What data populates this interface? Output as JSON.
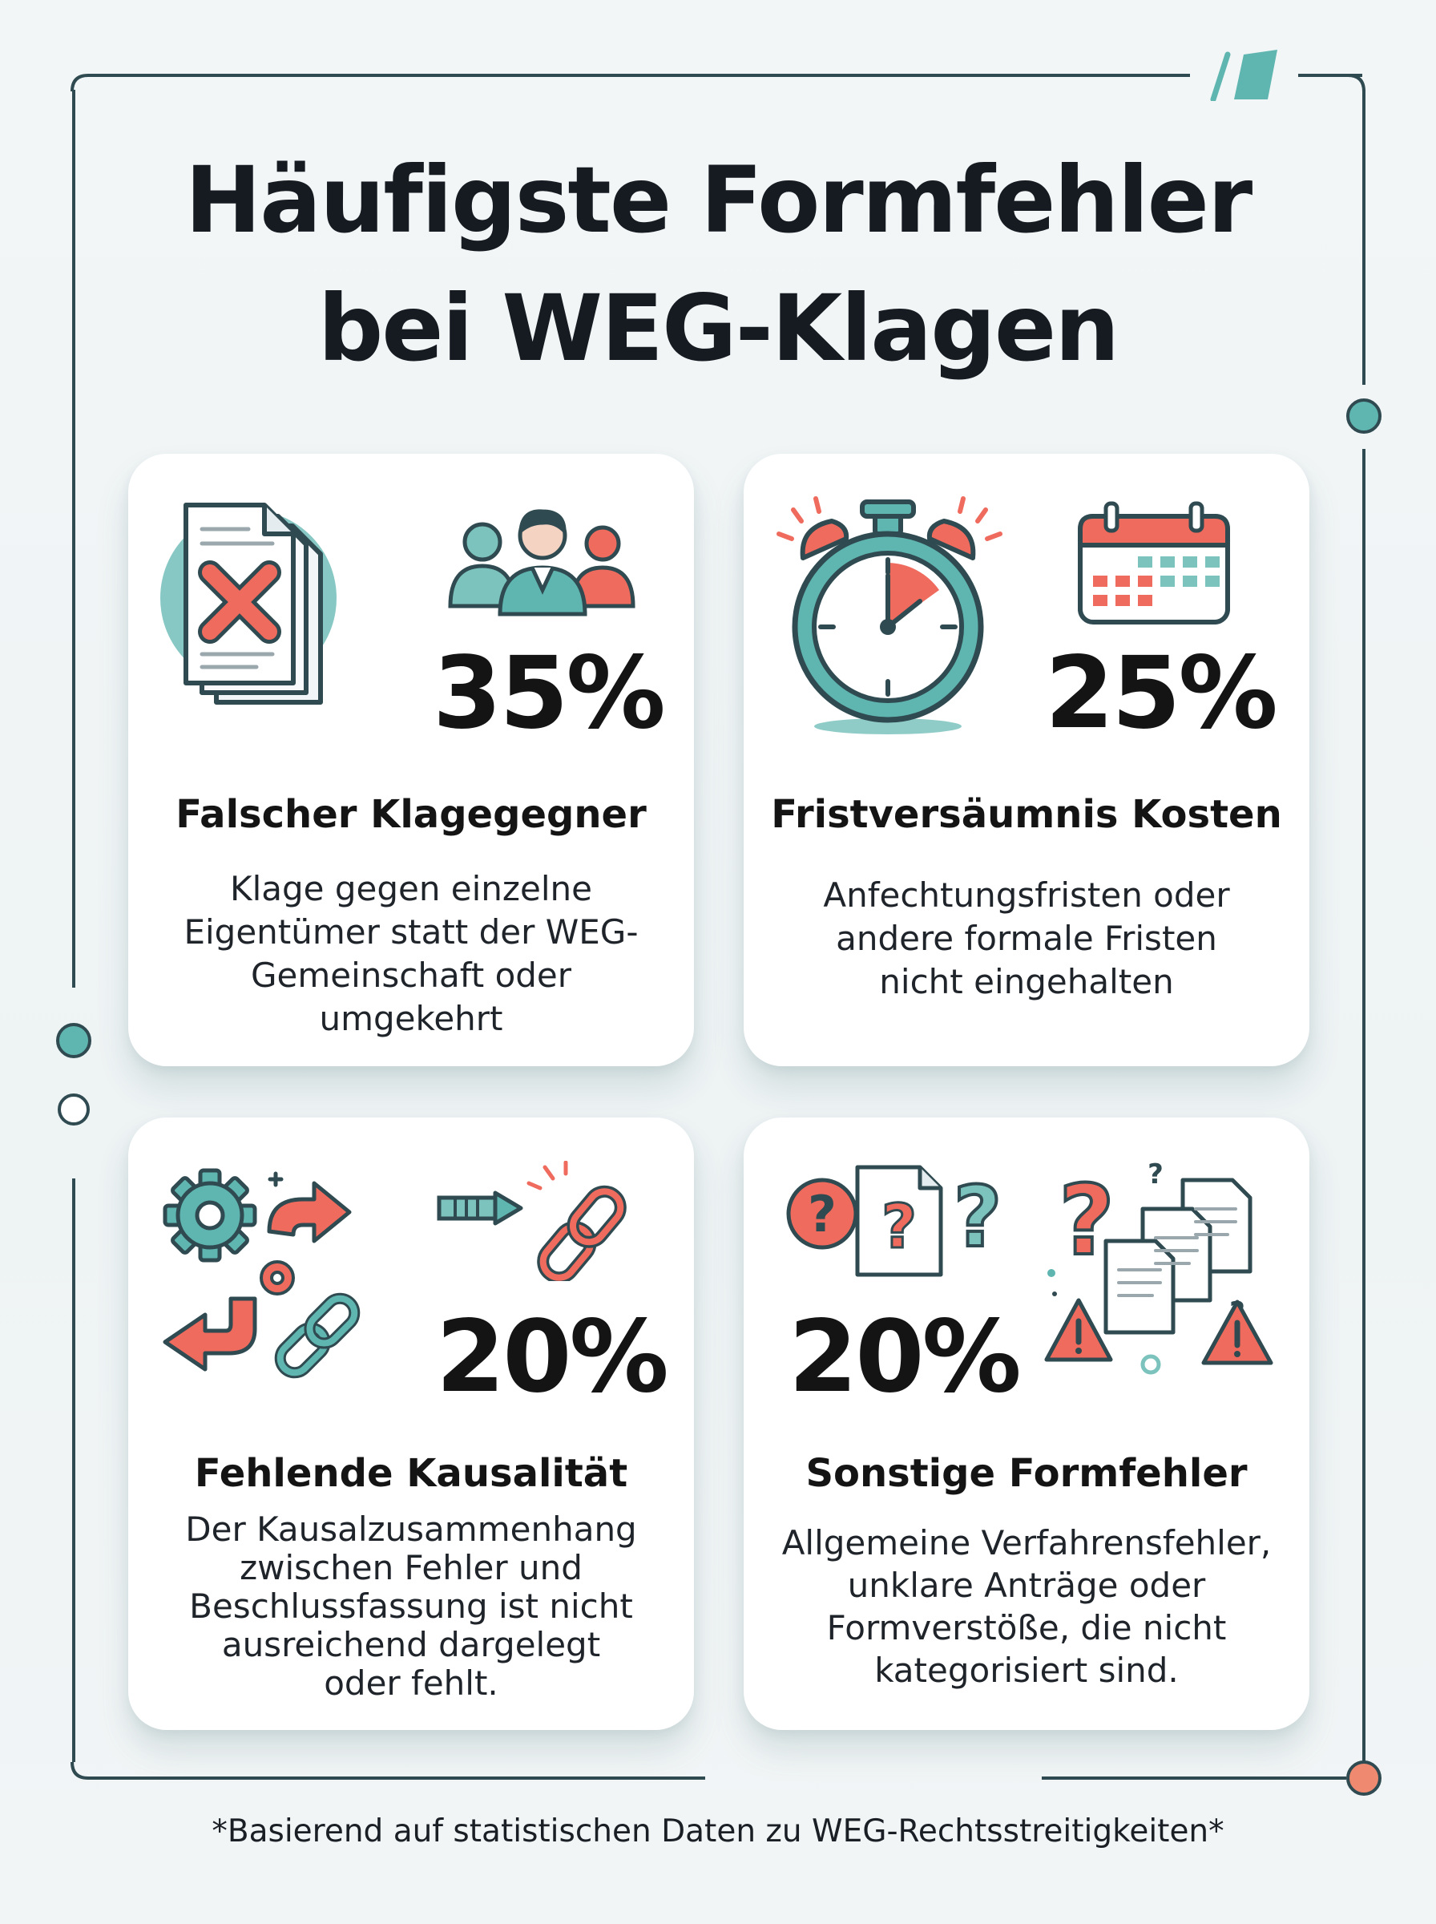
{
  "title": {
    "line1": "Häufigste Formfehler",
    "line2": "bei WEG-Klagen"
  },
  "colors": {
    "teal": "#5fb6b0",
    "coral": "#ef6b5e",
    "dark": "#161b22",
    "frame": "#2f4a50"
  },
  "cards": [
    {
      "percent": "35%",
      "title": "Falscher Klagegegner",
      "description": [
        "Klage gegen einzelne",
        "Eigentümer statt der WEG-",
        "Gemeinschaft oder",
        "umgekehrt"
      ],
      "icons": [
        "document-x-icon",
        "people-group-icon"
      ]
    },
    {
      "percent": "25%",
      "title": "Fristversäumnis Kosten",
      "description": [
        "Anfechtungsfristen oder",
        "andere formale Fristen",
        "nicht eingehalten"
      ],
      "icons": [
        "stopwatch-icon",
        "calendar-icon"
      ]
    },
    {
      "percent": "20%",
      "title": "Fehlende Kausalität",
      "description": [
        "Der Kausalzusammenhang",
        "zwischen Fehler und",
        "Beschlussfassung ist nicht",
        "ausreichend dargelegt",
        "oder fehlt."
      ],
      "icons": [
        "gears-arrows-icon",
        "chain-link-icon",
        "arrow-right-icon",
        "broken-link-icon"
      ]
    },
    {
      "percent": "20%",
      "title": "Sonstige Formfehler",
      "description": [
        "Allgemeine Verfahrensfehler,",
        "unklare Anträge oder",
        "Formverstöße, die nicht",
        "kategorisiert sind."
      ],
      "icons": [
        "question-document-icon",
        "documents-warning-icon"
      ]
    }
  ],
  "footnote": "*Basierend auf statistischen Daten zu WEG-Rechtsstreitigkeiten*"
}
